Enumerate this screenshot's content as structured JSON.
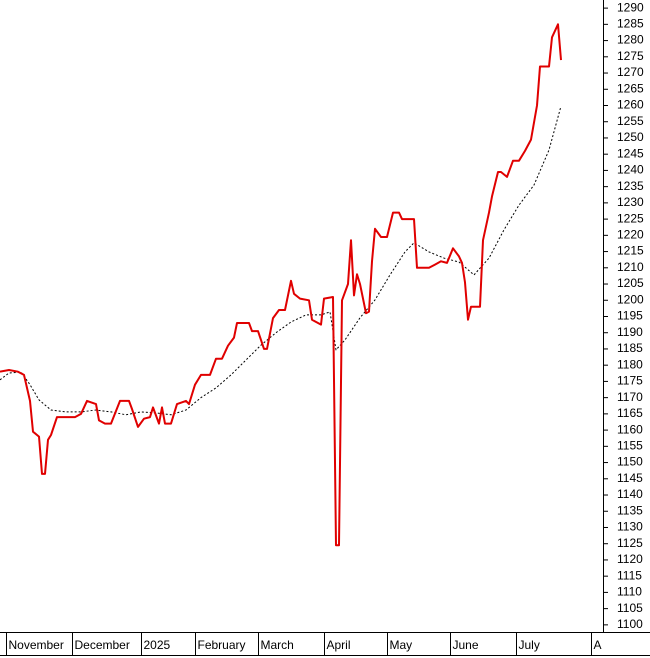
{
  "chart_data": {
    "type": "line",
    "xlim": [
      0,
      201
    ],
    "ylim": [
      1097.8,
      1292.5
    ],
    "xticks": [
      {
        "value": 2,
        "label": "November"
      },
      {
        "value": 24,
        "label": "December"
      },
      {
        "value": 47,
        "label": "2025"
      },
      {
        "value": 65,
        "label": "February"
      },
      {
        "value": 86,
        "label": "March"
      },
      {
        "value": 108,
        "label": "April"
      },
      {
        "value": 129,
        "label": "May"
      },
      {
        "value": 150,
        "label": "June"
      },
      {
        "value": 172,
        "label": "July"
      },
      {
        "value": 197,
        "label": "A"
      }
    ],
    "yticks": [
      1100,
      1105,
      1110,
      1115,
      1120,
      1125,
      1130,
      1135,
      1140,
      1145,
      1150,
      1155,
      1160,
      1165,
      1170,
      1175,
      1180,
      1185,
      1190,
      1195,
      1200,
      1205,
      1210,
      1215,
      1220,
      1225,
      1230,
      1235,
      1240,
      1245,
      1250,
      1255,
      1260,
      1265,
      1270,
      1275,
      1280,
      1285,
      1290
    ],
    "grid": false,
    "series": [
      {
        "color": "#e00000",
        "dash": false,
        "x": [
          0,
          3,
          6,
          8,
          10,
          11,
          13,
          14,
          15,
          16,
          17,
          19,
          22,
          25,
          27,
          29,
          32,
          33,
          35,
          37,
          40,
          43,
          44,
          46,
          48,
          50,
          51,
          53,
          54,
          55,
          57,
          59,
          62,
          63,
          65,
          67,
          70,
          72,
          74,
          76,
          78,
          79,
          83,
          84,
          86,
          88,
          89,
          91,
          93,
          95,
          97,
          98,
          100,
          103,
          104,
          107,
          108,
          111,
          112,
          113,
          114,
          116,
          117,
          118,
          119,
          120,
          122,
          123,
          124,
          125,
          127,
          129,
          131,
          133,
          134,
          138,
          139,
          143,
          145,
          147,
          149,
          151,
          153,
          154,
          155,
          156,
          157,
          160,
          161,
          163,
          164,
          166,
          167,
          169,
          171,
          173,
          175,
          177,
          179,
          180,
          183,
          184,
          186,
          187
        ],
        "values": [
          1178,
          1178.5,
          1178,
          1177,
          1169,
          1159.5,
          1158,
          1146.5,
          1146.5,
          1157,
          1158.5,
          1164,
          1164,
          1164,
          1165,
          1169,
          1168,
          1163,
          1162,
          1162,
          1169,
          1169,
          1166.5,
          1161,
          1163.5,
          1164,
          1167,
          1162,
          1167,
          1162,
          1162,
          1168,
          1169,
          1168,
          1174,
          1177,
          1177,
          1182,
          1182,
          1186,
          1188.5,
          1193,
          1193,
          1190.5,
          1190.5,
          1185,
          1185,
          1194.5,
          1197,
          1197,
          1206,
          1202,
          1200.5,
          1200,
          1194,
          1192.5,
          1200.5,
          1201,
          1124.5,
          1124.5,
          1200,
          1205,
          1218.5,
          1201.5,
          1208,
          1205,
          1196,
          1196.5,
          1212,
          1222,
          1219.5,
          1219.5,
          1227,
          1227,
          1225,
          1225,
          1210,
          1210,
          1211,
          1212,
          1211.5,
          1216,
          1213.5,
          1211.5,
          1205.5,
          1194,
          1198,
          1198,
          1218.5,
          1227,
          1232,
          1239.5,
          1239.5,
          1238,
          1243,
          1243,
          1246,
          1249.5,
          1260,
          1272,
          1272,
          1281,
          1285,
          1274
        ]
      },
      {
        "color": "#000000",
        "dash": true,
        "x": [
          0,
          3,
          7,
          10,
          13,
          17,
          22,
          27,
          32,
          37,
          42,
          47,
          52,
          57,
          62,
          67,
          72,
          77,
          82,
          87,
          92,
          97,
          102,
          107,
          110,
          112,
          115,
          120,
          125,
          130,
          135,
          138,
          143,
          148,
          153,
          158,
          163,
          168,
          173,
          178,
          183,
          187
        ],
        "values": [
          1175.5,
          1177.6,
          1177.9,
          1174,
          1169.3,
          1166.2,
          1165.6,
          1165.6,
          1166.2,
          1165.6,
          1164.7,
          1165.6,
          1165.3,
          1164.7,
          1166.2,
          1170,
          1173,
          1177,
          1181.6,
          1186.2,
          1190,
          1193.3,
          1195.5,
          1195.5,
          1196.4,
          1184.7,
          1187.8,
          1194.6,
          1200.1,
          1207.8,
          1214.9,
          1217.7,
          1214.9,
          1213,
          1211.8,
          1207.8,
          1213,
          1221.7,
          1229.3,
          1235.5,
          1246.3,
          1259.8
        ]
      }
    ]
  }
}
